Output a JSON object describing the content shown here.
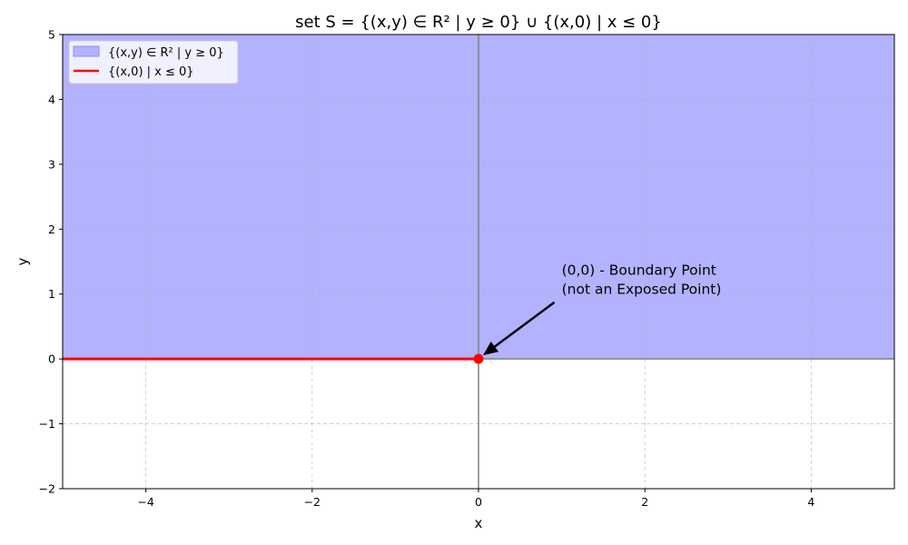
{
  "chart_data": {
    "type": "area",
    "title": "set S = {(x,y) ∈ R² | y ≥ 0} ∪ {(x,0) | x ≤ 0}",
    "xlabel": "x",
    "ylabel": "y",
    "xlim": [
      -5,
      5
    ],
    "ylim": [
      -2,
      5
    ],
    "xticks": [
      -4,
      -2,
      0,
      2,
      4
    ],
    "xtick_labels": [
      "−4",
      "−2",
      "0",
      "2",
      "4"
    ],
    "yticks": [
      -2,
      -1,
      0,
      1,
      2,
      3,
      4,
      5
    ],
    "ytick_labels": [
      "−2",
      "−1",
      "0",
      "1",
      "2",
      "3",
      "4",
      "5"
    ],
    "grid": true,
    "legend_position": "top-left",
    "series": [
      {
        "name": "{(x,y) ∈ R² | y ≥ 0}",
        "kind": "fill",
        "x_range": [
          -5,
          5
        ],
        "y_range": [
          0,
          5
        ],
        "color": "#b2b2ff"
      },
      {
        "name": "{(x,0) | x ≤ 0}",
        "kind": "line",
        "x": [
          -5,
          0
        ],
        "y": [
          0,
          0
        ],
        "color": "#ff0000"
      }
    ],
    "point": {
      "x": 0,
      "y": 0,
      "color": "#ff0000"
    },
    "annotation": {
      "lines": [
        "(0,0) - Boundary Point",
        "(not an Exposed Point)"
      ],
      "text_x": 1,
      "text_y": 1,
      "arrow_to": [
        0,
        0
      ]
    }
  }
}
